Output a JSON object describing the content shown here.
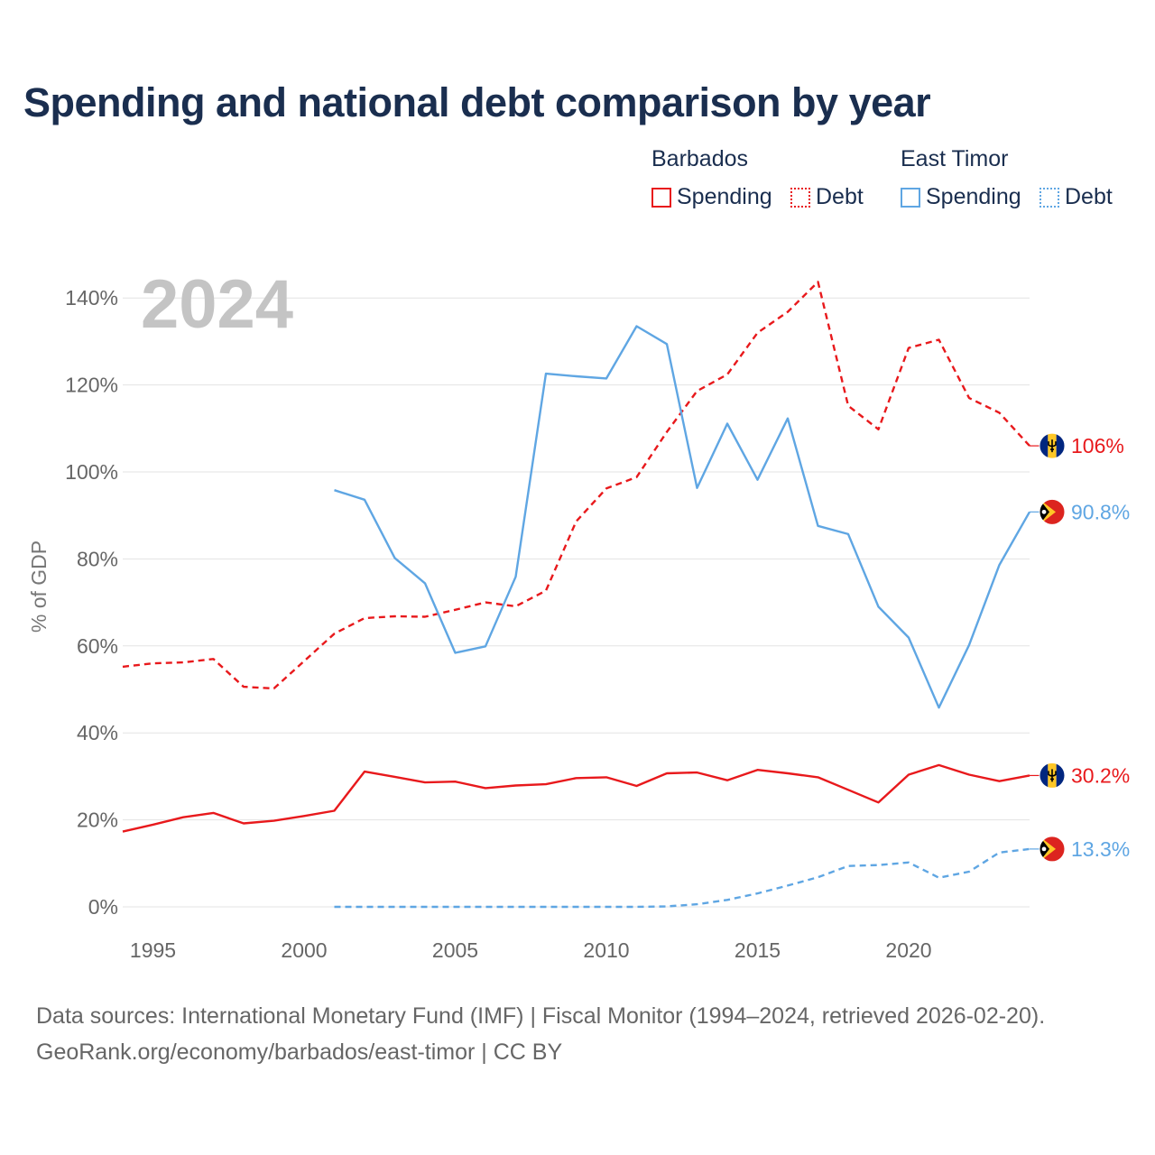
{
  "title": "Spending and national debt comparison by year",
  "legend": {
    "groups": [
      {
        "name": "Barbados",
        "color": "#e8191c",
        "items": [
          {
            "label": "Spending",
            "style": "solid"
          },
          {
            "label": "Debt",
            "style": "dotted"
          }
        ]
      },
      {
        "name": "East Timor",
        "color": "#5fa6e3",
        "items": [
          {
            "label": "Spending",
            "style": "solid"
          },
          {
            "label": "Debt",
            "style": "dotted"
          }
        ]
      }
    ]
  },
  "footer": {
    "line1": "Data sources: International Monetary Fund (IMF) | Fiscal Monitor (1994–2024, retrieved 2026-02-20).",
    "line2": "GeoRank.org/economy/barbados/east-timor | CC BY"
  },
  "chart_data": {
    "type": "line",
    "title": "Spending and national debt comparison by year",
    "year_label": "2024",
    "xlabel": "",
    "ylabel": "% of GDP",
    "xlim": [
      1994,
      2024
    ],
    "ylim": [
      -5,
      150
    ],
    "yticks": [
      0,
      20,
      40,
      60,
      80,
      100,
      120,
      140
    ],
    "ytick_labels": [
      "0%",
      "20%",
      "40%",
      "60%",
      "80%",
      "100%",
      "120%",
      "140%"
    ],
    "xticks": [
      1995,
      2000,
      2005,
      2010,
      2015,
      2020
    ],
    "xtick_labels": [
      "1995",
      "2000",
      "2005",
      "2010",
      "2015",
      "2020"
    ],
    "grid": true,
    "series": [
      {
        "name": "Barbados Debt",
        "country": "Barbados",
        "metric": "Debt",
        "color": "#e8191c",
        "dash": "dashed",
        "flag": "barbados",
        "end_label": "106%",
        "x": [
          1994,
          1995,
          1996,
          1997,
          1998,
          1999,
          2000,
          2001,
          2002,
          2003,
          2004,
          2005,
          2006,
          2007,
          2008,
          2009,
          2010,
          2011,
          2012,
          2013,
          2014,
          2015,
          2016,
          2017,
          2018,
          2019,
          2020,
          2021,
          2022,
          2023,
          2024
        ],
        "values": [
          55.2,
          56.0,
          56.2,
          57.0,
          50.6,
          50.2,
          56.5,
          62.8,
          66.4,
          66.8,
          66.7,
          68.3,
          70.0,
          69.1,
          72.7,
          88.6,
          96.2,
          98.8,
          109.2,
          118.6,
          122.4,
          132.0,
          136.8,
          143.7,
          115.2,
          109.8,
          128.5,
          130.4,
          117.0,
          113.6,
          106.0
        ]
      },
      {
        "name": "East Timor Spending",
        "country": "East Timor",
        "metric": "Spending",
        "color": "#5fa6e3",
        "dash": "solid",
        "flag": "east-timor",
        "end_label": "90.8%",
        "x": [
          2001,
          2002,
          2003,
          2004,
          2005,
          2006,
          2007,
          2008,
          2009,
          2010,
          2011,
          2012,
          2013,
          2014,
          2015,
          2016,
          2017,
          2018,
          2019,
          2020,
          2021,
          2022,
          2023,
          2024
        ],
        "values": [
          95.8,
          93.6,
          80.2,
          74.4,
          58.4,
          59.9,
          75.9,
          122.6,
          122.0,
          121.5,
          133.5,
          129.4,
          96.3,
          111.1,
          98.2,
          112.3,
          87.6,
          85.7,
          69.0,
          61.9,
          45.8,
          60.2,
          78.6,
          90.8
        ]
      },
      {
        "name": "Barbados Spending",
        "country": "Barbados",
        "metric": "Spending",
        "color": "#e8191c",
        "dash": "solid",
        "flag": "barbados",
        "end_label": "30.2%",
        "x": [
          1994,
          1995,
          1996,
          1997,
          1998,
          1999,
          2000,
          2001,
          2002,
          2003,
          2004,
          2005,
          2006,
          2007,
          2008,
          2009,
          2010,
          2011,
          2012,
          2013,
          2014,
          2015,
          2016,
          2017,
          2018,
          2019,
          2020,
          2021,
          2022,
          2023,
          2024
        ],
        "values": [
          17.3,
          18.9,
          20.6,
          21.6,
          19.2,
          19.8,
          20.9,
          22.1,
          31.1,
          29.9,
          28.6,
          28.8,
          27.3,
          27.9,
          28.2,
          29.6,
          29.8,
          27.8,
          30.7,
          30.9,
          29.1,
          31.5,
          30.7,
          29.8,
          26.9,
          24.0,
          30.4,
          32.6,
          30.4,
          28.9,
          30.2
        ]
      },
      {
        "name": "East Timor Debt",
        "country": "East Timor",
        "metric": "Debt",
        "color": "#5fa6e3",
        "dash": "dashed",
        "flag": "east-timor",
        "end_label": "13.3%",
        "x": [
          2001,
          2002,
          2003,
          2004,
          2005,
          2006,
          2007,
          2008,
          2009,
          2010,
          2011,
          2012,
          2013,
          2014,
          2015,
          2016,
          2017,
          2018,
          2019,
          2020,
          2021,
          2022,
          2023,
          2024
        ],
        "values": [
          0,
          0,
          0,
          0,
          0,
          0,
          0,
          0,
          0,
          0,
          0,
          0.1,
          0.6,
          1.6,
          3.1,
          4.9,
          6.8,
          9.4,
          9.6,
          10.2,
          6.7,
          8.1,
          12.5,
          13.3
        ]
      }
    ]
  }
}
